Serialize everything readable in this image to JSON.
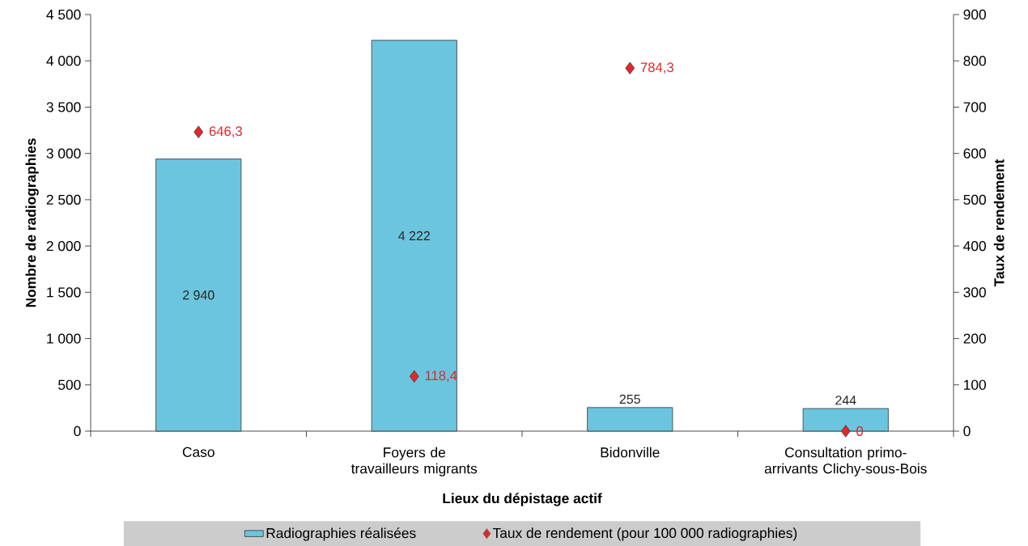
{
  "chart_data": {
    "type": "bar",
    "xlabel": "Lieux du dépistage actif",
    "ylabel": "Nombre de radiographies",
    "y2label": "Taux de rendement",
    "categories": [
      "Caso",
      "Foyers de travailleurs migrants",
      "Bidonville",
      "Consultation primo-arrivants Clichy-sous-Bois"
    ],
    "series": [
      {
        "name": "Radiographies réalisées",
        "color": "#6cc5de",
        "values": [
          2940,
          4222,
          255,
          244
        ],
        "value_labels": [
          "2 940",
          "4 222",
          "255",
          "244"
        ]
      },
      {
        "name": "Taux de rendement (pour 100 000 radiographies)",
        "type": "scatter",
        "axis": "y2",
        "marker": "diamond",
        "color": "#e3262a",
        "x": [
          "Caso",
          "Foyers de travailleurs migrants",
          "Bidonville",
          "Consultation primo-arrivants Clichy-sous-Bois"
        ],
        "values": [
          646.3,
          118.4,
          784.3,
          0
        ],
        "value_labels": [
          "646,3",
          "118,4",
          "784,3",
          "0"
        ]
      }
    ],
    "ylim": [
      0,
      4500
    ],
    "yticks": [
      0,
      500,
      {
        "value": 1000,
        "label": "1 000"
      },
      {
        "value": 1500,
        "label": "1 500"
      },
      {
        "value": 2000,
        "label": "2 000"
      },
      {
        "value": 2500,
        "label": "2 500"
      },
      {
        "value": 3000,
        "label": "3 000"
      },
      {
        "value": 3500,
        "label": "3 500"
      },
      {
        "value": 4000,
        "label": "4 000"
      },
      {
        "value": 4500,
        "label": "4 500"
      }
    ],
    "y2lim": [
      0,
      900
    ],
    "y2ticks": [
      0,
      100,
      200,
      300,
      400,
      500,
      600,
      700,
      800,
      900
    ],
    "legend": "bottom"
  }
}
